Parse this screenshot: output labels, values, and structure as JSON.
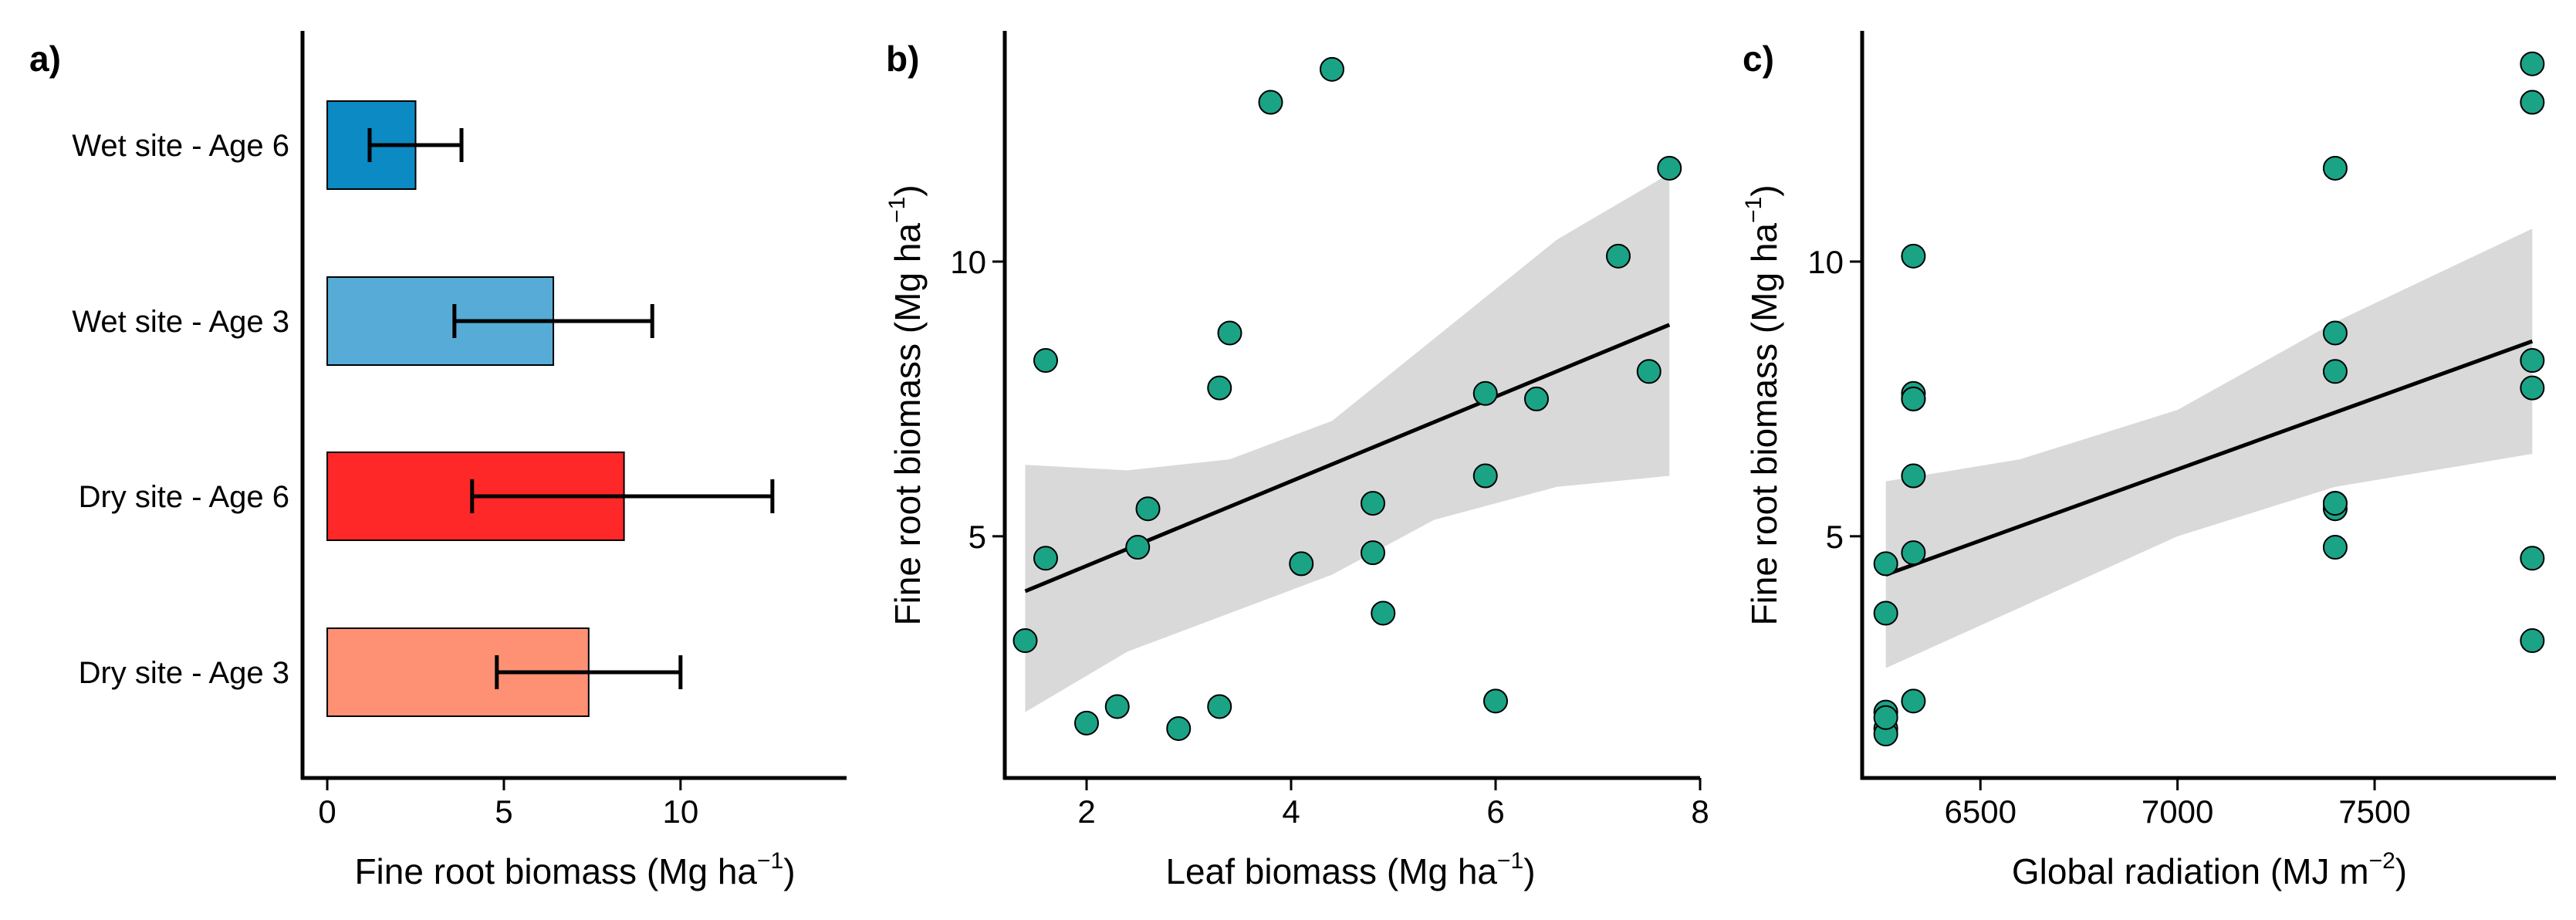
{
  "chart_data": [
    {
      "panel": "a)",
      "type": "bar",
      "orientation": "horizontal",
      "categories": [
        "Wet site - Age 6",
        "Wet site - Age 3",
        "Dry site - Age 6",
        "Dry site - Age 3"
      ],
      "values": [
        2.5,
        6.4,
        8.4,
        7.4
      ],
      "error_low": [
        1.2,
        3.6,
        4.1,
        4.8
      ],
      "error_high": [
        3.8,
        9.2,
        12.6,
        10.0
      ],
      "colors": [
        "#0b8ac4",
        "#56acd6",
        "#ff2828",
        "#fe9173"
      ],
      "xlabel": "Fine root biomass (Mg ha",
      "xlabel_sup": "−1",
      "xlabel_end": ")",
      "xlim": [
        -0.7,
        14.7
      ],
      "xticks": [
        0,
        5,
        10
      ],
      "xtick_labels": [
        "0",
        "5",
        "10"
      ]
    },
    {
      "panel": "b)",
      "type": "scatter",
      "x": [
        1.4,
        1.6,
        1.6,
        2.0,
        2.3,
        2.5,
        2.6,
        2.9,
        3.3,
        3.3,
        3.4,
        3.8,
        4.1,
        4.4,
        4.8,
        4.8,
        4.9,
        5.9,
        5.9,
        6.0,
        6.4,
        7.2,
        7.5,
        7.7
      ],
      "y": [
        3.1,
        8.2,
        4.6,
        1.6,
        1.9,
        4.8,
        5.5,
        1.5,
        7.7,
        1.9,
        8.7,
        12.9,
        4.5,
        13.5,
        5.6,
        4.7,
        3.6,
        7.6,
        6.1,
        2.0,
        7.5,
        10.1,
        8.0,
        11.7
      ],
      "fit_line": {
        "x": [
          1.4,
          7.7
        ],
        "y": [
          4.0,
          8.85
        ]
      },
      "ci_lower": [
        1.8,
        2.9,
        3.6,
        4.3,
        5.3,
        5.9,
        6.1
      ],
      "ci_upper": [
        6.3,
        6.2,
        6.4,
        7.1,
        8.6,
        10.4,
        11.6
      ],
      "ci_x": [
        1.4,
        2.4,
        3.4,
        4.4,
        5.4,
        6.6,
        7.7
      ],
      "xlabel": "Leaf biomass (Mg ha",
      "xlabel_sup": "−1",
      "xlabel_end": ")",
      "ylabel": "Fine root biomass (Mg ha",
      "ylabel_sup": "−1",
      "ylabel_end": ")",
      "xlim": [
        1.2,
        8.0
      ],
      "ylim": [
        0.6,
        14.2
      ],
      "xticks": [
        2,
        4,
        6,
        8
      ],
      "xtick_labels": [
        "2",
        "4",
        "6",
        "8"
      ],
      "yticks": [
        5,
        10
      ],
      "ytick_labels": [
        "5",
        "10"
      ],
      "point_color": "#1ba386"
    },
    {
      "panel": "c)",
      "type": "scatter",
      "x": [
        6260,
        6260,
        6260,
        6260,
        6260,
        6260,
        6330,
        6330,
        6330,
        6330,
        6330,
        6330,
        6330,
        7400,
        7400,
        7400,
        7400,
        7400,
        7400,
        7400,
        7900,
        7900,
        7900,
        7900,
        7900,
        7900
      ],
      "y": [
        4.5,
        3.6,
        1.8,
        1.5,
        1.4,
        1.7,
        10.1,
        7.6,
        7.5,
        6.1,
        4.7,
        2.0,
        7.5,
        11.7,
        8.7,
        8.0,
        5.6,
        5.5,
        4.8,
        5.6,
        13.6,
        12.9,
        8.2,
        7.7,
        4.6,
        3.1
      ],
      "fit_line": {
        "x": [
          6260,
          7900
        ],
        "y": [
          4.3,
          8.55
        ]
      },
      "ci_x": [
        6260,
        6600,
        7000,
        7400,
        7900
      ],
      "ci_lower": [
        2.6,
        3.7,
        5.0,
        5.9,
        6.5
      ],
      "ci_upper": [
        6.0,
        6.4,
        7.3,
        8.9,
        10.6
      ],
      "xlabel": "Global radiation (MJ m",
      "xlabel_sup": "−2",
      "xlabel_end": ")",
      "ylabel": "Fine root biomass (Mg ha",
      "ylabel_sup": "−1",
      "ylabel_end": ")",
      "xlim": [
        6200,
        7960
      ],
      "ylim": [
        0.6,
        14.2
      ],
      "xticks": [
        6500,
        7000,
        7500
      ],
      "xtick_labels": [
        "6500",
        "7000",
        "7500"
      ],
      "yticks": [
        5,
        10
      ],
      "ytick_labels": [
        "5",
        "10"
      ],
      "point_color": "#1ba386"
    }
  ]
}
